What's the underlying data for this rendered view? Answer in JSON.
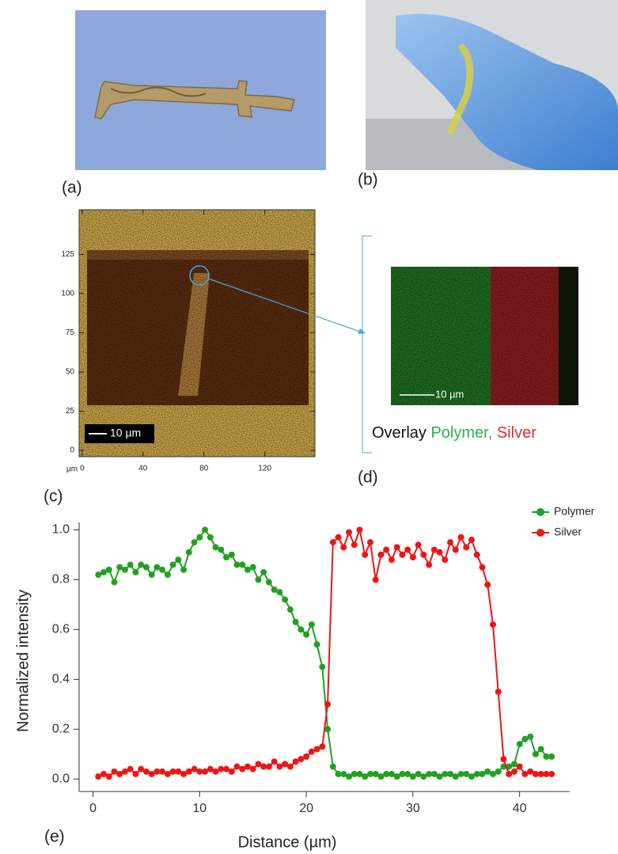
{
  "panels": {
    "a": "(a)",
    "b": "(b)",
    "c": "(c)",
    "d": "(d)",
    "e": "(e)"
  },
  "micrograph": {
    "xlim": [
      -2,
      153
    ],
    "ylim": [
      -4,
      153.5
    ],
    "xticks": [
      0,
      40,
      80,
      120
    ],
    "yticks": [
      0,
      25,
      50,
      75,
      100,
      125
    ],
    "unit": "µm",
    "scale_bar": "10 µm"
  },
  "overlay": {
    "scale_bar": "10 µm",
    "caption_prefix": "Overlay",
    "caption_polymer": "Polymer,",
    "caption_silver": "Silver"
  },
  "chart_data": {
    "type": "line",
    "xlabel": "Distance (µm)",
    "ylabel": "Normalized intensity",
    "x": [
      0.5,
      1,
      1.5,
      2,
      2.5,
      3,
      3.5,
      4,
      4.5,
      5,
      5.5,
      6,
      6.5,
      7,
      7.5,
      8,
      8.5,
      9,
      9.5,
      10,
      10.5,
      11,
      11.5,
      12,
      12.5,
      13,
      13.5,
      14,
      14.5,
      15,
      15.5,
      16,
      16.5,
      17,
      17.5,
      18,
      18.5,
      19,
      19.5,
      20,
      20.5,
      21,
      21.5,
      22,
      22.5,
      23,
      23.5,
      24,
      24.5,
      25,
      25.5,
      26,
      26.5,
      27,
      27.5,
      28,
      28.5,
      29,
      29.5,
      30,
      30.5,
      31,
      31.5,
      32,
      32.5,
      33,
      33.5,
      34,
      34.5,
      35,
      35.5,
      36,
      36.5,
      37,
      37.5,
      38,
      38.5,
      39,
      39.5,
      40,
      40.5,
      41,
      41.5,
      42,
      42.5,
      43
    ],
    "series": [
      {
        "name": "Polymer",
        "color": "#22a022",
        "values": [
          0.82,
          0.83,
          0.84,
          0.79,
          0.85,
          0.84,
          0.86,
          0.83,
          0.86,
          0.85,
          0.82,
          0.85,
          0.84,
          0.82,
          0.86,
          0.88,
          0.84,
          0.91,
          0.95,
          0.97,
          1.0,
          0.97,
          0.93,
          0.92,
          0.89,
          0.9,
          0.86,
          0.86,
          0.84,
          0.85,
          0.8,
          0.83,
          0.79,
          0.76,
          0.75,
          0.72,
          0.68,
          0.63,
          0.6,
          0.58,
          0.62,
          0.54,
          0.45,
          0.2,
          0.05,
          0.02,
          0.02,
          0.01,
          0.02,
          0.02,
          0.01,
          0.02,
          0.02,
          0.01,
          0.02,
          0.02,
          0.01,
          0.02,
          0.02,
          0.01,
          0.02,
          0.01,
          0.02,
          0.02,
          0.01,
          0.02,
          0.02,
          0.01,
          0.02,
          0.02,
          0.01,
          0.02,
          0.02,
          0.03,
          0.02,
          0.03,
          0.05,
          0.05,
          0.06,
          0.14,
          0.16,
          0.17,
          0.1,
          0.12,
          0.09,
          0.09
        ]
      },
      {
        "name": "Silver",
        "color": "#ee1515",
        "values": [
          0.01,
          0.02,
          0.01,
          0.03,
          0.02,
          0.03,
          0.04,
          0.02,
          0.04,
          0.03,
          0.02,
          0.03,
          0.03,
          0.02,
          0.03,
          0.03,
          0.02,
          0.03,
          0.04,
          0.03,
          0.03,
          0.04,
          0.03,
          0.04,
          0.04,
          0.03,
          0.05,
          0.04,
          0.05,
          0.04,
          0.06,
          0.05,
          0.05,
          0.07,
          0.05,
          0.06,
          0.05,
          0.07,
          0.08,
          0.09,
          0.11,
          0.12,
          0.13,
          0.3,
          0.95,
          0.97,
          0.93,
          0.99,
          0.94,
          1.0,
          0.9,
          0.95,
          0.8,
          0.9,
          0.92,
          0.88,
          0.93,
          0.9,
          0.92,
          0.89,
          0.94,
          0.9,
          0.86,
          0.92,
          0.91,
          0.88,
          0.95,
          0.92,
          0.97,
          0.93,
          0.96,
          0.9,
          0.85,
          0.78,
          0.62,
          0.35,
          0.08,
          0.02,
          0.03,
          0.05,
          0.02,
          0.03,
          0.02,
          0.02,
          0.02,
          0.02
        ]
      }
    ],
    "xlim": [
      -1.3,
      44.7
    ],
    "xticks": [
      0,
      10,
      20,
      30,
      40
    ],
    "ylim": [
      -0.05,
      1.03
    ],
    "yticks": [
      {
        "value": 0,
        "label": "0.0"
      },
      0.2,
      0.4,
      0.6,
      0.8,
      {
        "value": 1,
        "label": "1.0"
      }
    ],
    "legend": "top-right"
  }
}
